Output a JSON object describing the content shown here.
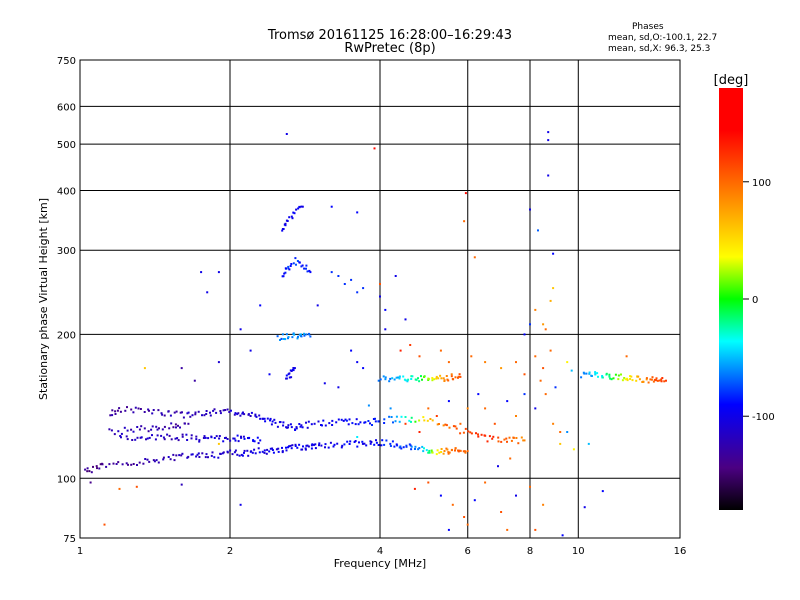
{
  "chart_data": {
    "type": "scatter",
    "title": "Tromsø 20161125 16:28:00–16:29:43",
    "subtitle": "RwPretec (8p)",
    "xlabel": "Frequency [MHz]",
    "ylabel": "Stationary phase Virtual Height [km]",
    "x_scale": "log",
    "y_scale": "log",
    "xlim": [
      1,
      16
    ],
    "ylim": [
      75,
      750
    ],
    "x_ticks": [
      1,
      2,
      4,
      6,
      8,
      10,
      16
    ],
    "y_ticks": [
      75,
      100,
      200,
      300,
      400,
      500,
      600,
      750
    ],
    "grid": true,
    "legend": {
      "heading": "Phases",
      "line_o": "mean, sd,O:-100.1, 22.7",
      "line_x": "mean, sd,X:  96.3, 25.3"
    },
    "colorbar": {
      "label": "[deg]",
      "ticks": [
        100,
        0,
        -100
      ],
      "range": [
        -180,
        180
      ],
      "colormap": "rainbow"
    },
    "traces": [
      {
        "x": [
          1.0,
          1.06,
          1.1,
          1.2,
          1.3,
          1.4,
          1.5,
          1.6,
          1.7,
          1.8,
          1.9,
          2.0,
          2.1,
          2.2,
          2.3,
          2.4,
          2.5,
          2.6,
          2.7,
          2.8,
          2.9,
          3.0,
          3.2,
          3.4,
          3.6,
          3.8,
          4.0,
          4.2,
          4.4,
          4.6,
          4.8,
          5.0,
          5.2,
          5.4,
          5.6,
          5.8,
          6.0
        ],
        "y": [
          104,
          104,
          106,
          108,
          108,
          109,
          110,
          111,
          112,
          112,
          112,
          113,
          113,
          113,
          114,
          114,
          115,
          115,
          116,
          116,
          117,
          117,
          117,
          118,
          118,
          119,
          119,
          118,
          117,
          116,
          115,
          114,
          114,
          114,
          114,
          114,
          114
        ],
        "phase": [
          -140,
          -140,
          -140,
          -130,
          -130,
          -125,
          -120,
          -120,
          -115,
          -115,
          -110,
          -110,
          -105,
          -105,
          -100,
          -100,
          -100,
          -100,
          -100,
          -100,
          -100,
          -100,
          -100,
          -95,
          -95,
          -95,
          -90,
          -85,
          -80,
          -75,
          -60,
          -20,
          40,
          90,
          100,
          100,
          100
        ]
      },
      {
        "x": [
          1.15,
          1.2,
          1.3,
          1.4,
          1.5,
          1.6,
          1.7,
          1.8,
          1.9,
          2.0,
          2.1,
          2.2,
          2.3,
          2.4,
          2.5,
          2.6,
          2.7,
          2.8,
          3.0,
          3.2,
          3.4,
          3.6,
          3.8,
          4.0,
          4.3,
          4.6,
          5.0,
          5.4,
          5.8,
          6.2,
          6.6,
          7.0,
          7.4,
          7.8
        ],
        "y": [
          137,
          139,
          139,
          138,
          137,
          136,
          136,
          137,
          138,
          138,
          137,
          136,
          135,
          132,
          130,
          128,
          128,
          129,
          130,
          131,
          131,
          131,
          131,
          132,
          133,
          133,
          132,
          129,
          126,
          123,
          121,
          120,
          120,
          120
        ],
        "phase": [
          -130,
          -130,
          -130,
          -125,
          -125,
          -120,
          -120,
          -120,
          -115,
          -115,
          -110,
          -110,
          -105,
          -100,
          -100,
          -100,
          -100,
          -100,
          -100,
          -95,
          -95,
          -95,
          -90,
          -90,
          -60,
          -20,
          60,
          100,
          110,
          120,
          130,
          110,
          100,
          90
        ]
      },
      {
        "x": [
          1.15,
          1.25,
          1.35,
          1.45,
          1.55,
          1.65
        ],
        "y": [
          125,
          126,
          127,
          128,
          129,
          130
        ],
        "phase": [
          -120,
          -120,
          -125,
          -125,
          -130,
          -130
        ]
      },
      {
        "x": [
          1.2,
          1.3,
          1.4,
          1.5,
          1.6,
          1.7,
          1.8,
          1.9,
          2.0,
          2.1,
          2.2,
          2.3
        ],
        "y": [
          122,
          122,
          122,
          122,
          122,
          121,
          121,
          121,
          121,
          121,
          120,
          120
        ],
        "phase": [
          -110,
          -115,
          -115,
          -120,
          -120,
          -115,
          -110,
          -110,
          -105,
          -100,
          -100,
          -95
        ]
      },
      {
        "x": [
          2.5,
          2.6,
          2.7,
          2.8,
          2.9
        ],
        "y": [
          197,
          198,
          199,
          200,
          198
        ],
        "phase": [
          -70,
          -60,
          -55,
          -60,
          -70
        ]
      },
      {
        "x": [
          2.55,
          2.6,
          2.7,
          2.8,
          2.9
        ],
        "y": [
          265,
          275,
          285,
          280,
          270
        ],
        "phase": [
          -90,
          -85,
          -80,
          -85,
          -90
        ]
      },
      {
        "x": [
          2.55,
          2.6,
          2.7,
          2.8
        ],
        "y": [
          330,
          345,
          360,
          370
        ],
        "phase": [
          -100,
          -100,
          -100,
          -100
        ]
      },
      {
        "x": [
          2.6,
          2.65,
          2.7
        ],
        "y": [
          160,
          165,
          170
        ],
        "phase": [
          -95,
          -100,
          -100
        ]
      },
      {
        "x": [
          4.0,
          4.2,
          4.4,
          4.6,
          4.8,
          5.0,
          5.2,
          5.4,
          5.6,
          5.8
        ],
        "y": [
          161,
          161,
          161,
          161,
          162,
          162,
          162,
          162,
          163,
          163
        ],
        "phase": [
          -70,
          -60,
          -50,
          -30,
          -10,
          20,
          60,
          90,
          100,
          110
        ]
      },
      {
        "x": [
          10.2,
          10.6,
          11.0,
          11.5,
          12.0,
          12.5,
          13.0,
          13.5,
          14.0,
          14.5,
          15.0
        ],
        "y": [
          165,
          165,
          165,
          164,
          163,
          162,
          162,
          161,
          161,
          161,
          160
        ],
        "phase": [
          -60,
          -50,
          -40,
          -20,
          10,
          40,
          60,
          80,
          100,
          110,
          120
        ]
      }
    ],
    "points": [
      {
        "x": 2.6,
        "y": 525,
        "phase": -100
      },
      {
        "x": 8.7,
        "y": 530,
        "phase": -100
      },
      {
        "x": 8.7,
        "y": 510,
        "phase": -100
      },
      {
        "x": 8.7,
        "y": 430,
        "phase": -100
      },
      {
        "x": 3.9,
        "y": 490,
        "phase": 140
      },
      {
        "x": 5.95,
        "y": 395,
        "phase": 140
      },
      {
        "x": 8.0,
        "y": 365,
        "phase": -100
      },
      {
        "x": 8.3,
        "y": 330,
        "phase": -70
      },
      {
        "x": 8.9,
        "y": 295,
        "phase": -90
      },
      {
        "x": 6.2,
        "y": 290,
        "phase": 100
      },
      {
        "x": 3.2,
        "y": 370,
        "phase": -90
      },
      {
        "x": 3.6,
        "y": 360,
        "phase": -90
      },
      {
        "x": 3.4,
        "y": 255,
        "phase": -80
      },
      {
        "x": 3.5,
        "y": 260,
        "phase": -80
      },
      {
        "x": 3.6,
        "y": 245,
        "phase": -80
      },
      {
        "x": 3.7,
        "y": 250,
        "phase": -80
      },
      {
        "x": 3.2,
        "y": 270,
        "phase": -80
      },
      {
        "x": 3.3,
        "y": 265,
        "phase": -80
      },
      {
        "x": 1.9,
        "y": 270,
        "phase": -100
      },
      {
        "x": 1.75,
        "y": 270,
        "phase": -100
      },
      {
        "x": 1.8,
        "y": 245,
        "phase": -100
      },
      {
        "x": 4.0,
        "y": 240,
        "phase": -100
      },
      {
        "x": 4.5,
        "y": 215,
        "phase": -100
      },
      {
        "x": 8.0,
        "y": 210,
        "phase": -80
      },
      {
        "x": 8.2,
        "y": 225,
        "phase": 90
      },
      {
        "x": 8.5,
        "y": 210,
        "phase": 80
      },
      {
        "x": 8.8,
        "y": 235,
        "phase": 70
      },
      {
        "x": 8.9,
        "y": 250,
        "phase": 60
      },
      {
        "x": 5.3,
        "y": 185,
        "phase": 100
      },
      {
        "x": 5.5,
        "y": 175,
        "phase": 100
      },
      {
        "x": 6.1,
        "y": 180,
        "phase": 100
      },
      {
        "x": 6.5,
        "y": 175,
        "phase": 90
      },
      {
        "x": 7.0,
        "y": 170,
        "phase": 80
      },
      {
        "x": 7.5,
        "y": 175,
        "phase": 100
      },
      {
        "x": 7.8,
        "y": 165,
        "phase": 110
      },
      {
        "x": 8.2,
        "y": 180,
        "phase": 100
      },
      {
        "x": 8.5,
        "y": 170,
        "phase": 110
      },
      {
        "x": 8.8,
        "y": 185,
        "phase": 100
      },
      {
        "x": 4.4,
        "y": 185,
        "phase": 130
      },
      {
        "x": 4.6,
        "y": 190,
        "phase": 120
      },
      {
        "x": 4.8,
        "y": 180,
        "phase": 110
      },
      {
        "x": 3.3,
        "y": 155,
        "phase": -100
      },
      {
        "x": 3.1,
        "y": 158,
        "phase": -100
      },
      {
        "x": 3.5,
        "y": 185,
        "phase": -90
      },
      {
        "x": 3.6,
        "y": 175,
        "phase": -95
      },
      {
        "x": 3.7,
        "y": 170,
        "phase": -90
      },
      {
        "x": 2.4,
        "y": 165,
        "phase": -95
      },
      {
        "x": 1.7,
        "y": 160,
        "phase": -130
      },
      {
        "x": 1.6,
        "y": 170,
        "phase": -130
      },
      {
        "x": 1.35,
        "y": 170,
        "phase": 60
      },
      {
        "x": 1.9,
        "y": 175,
        "phase": -110
      },
      {
        "x": 4.2,
        "y": 140,
        "phase": -60
      },
      {
        "x": 4.5,
        "y": 130,
        "phase": 120
      },
      {
        "x": 4.8,
        "y": 125,
        "phase": 130
      },
      {
        "x": 5.0,
        "y": 140,
        "phase": 100
      },
      {
        "x": 5.2,
        "y": 135,
        "phase": 120
      },
      {
        "x": 5.5,
        "y": 145,
        "phase": -90
      },
      {
        "x": 5.8,
        "y": 130,
        "phase": 100
      },
      {
        "x": 6.0,
        "y": 140,
        "phase": 90
      },
      {
        "x": 6.3,
        "y": 150,
        "phase": -90
      },
      {
        "x": 6.5,
        "y": 140,
        "phase": 100
      },
      {
        "x": 6.8,
        "y": 130,
        "phase": 110
      },
      {
        "x": 7.2,
        "y": 145,
        "phase": -90
      },
      {
        "x": 7.5,
        "y": 135,
        "phase": 90
      },
      {
        "x": 7.8,
        "y": 150,
        "phase": -80
      },
      {
        "x": 8.2,
        "y": 140,
        "phase": -100
      },
      {
        "x": 8.6,
        "y": 150,
        "phase": 100
      },
      {
        "x": 8.9,
        "y": 130,
        "phase": 90
      },
      {
        "x": 9.2,
        "y": 125,
        "phase": 100
      },
      {
        "x": 4.7,
        "y": 95,
        "phase": 130
      },
      {
        "x": 5.0,
        "y": 98,
        "phase": 110
      },
      {
        "x": 5.3,
        "y": 92,
        "phase": -90
      },
      {
        "x": 5.6,
        "y": 88,
        "phase": 100
      },
      {
        "x": 5.9,
        "y": 83,
        "phase": 110
      },
      {
        "x": 6.2,
        "y": 90,
        "phase": -90
      },
      {
        "x": 6.5,
        "y": 98,
        "phase": 100
      },
      {
        "x": 7.0,
        "y": 85,
        "phase": 110
      },
      {
        "x": 7.5,
        "y": 92,
        "phase": -100
      },
      {
        "x": 8.0,
        "y": 96,
        "phase": 100
      },
      {
        "x": 8.5,
        "y": 88,
        "phase": 90
      },
      {
        "x": 5.5,
        "y": 78,
        "phase": -90
      },
      {
        "x": 6.0,
        "y": 80,
        "phase": 100
      },
      {
        "x": 8.2,
        "y": 78,
        "phase": 110
      },
      {
        "x": 9.3,
        "y": 76,
        "phase": -90
      },
      {
        "x": 7.2,
        "y": 78,
        "phase": 100
      },
      {
        "x": 10.3,
        "y": 87,
        "phase": -100
      },
      {
        "x": 11.2,
        "y": 94,
        "phase": -90
      },
      {
        "x": 2.1,
        "y": 88,
        "phase": -100
      },
      {
        "x": 1.2,
        "y": 95,
        "phase": 100
      },
      {
        "x": 1.3,
        "y": 96,
        "phase": 110
      },
      {
        "x": 1.12,
        "y": 80,
        "phase": 110
      },
      {
        "x": 1.6,
        "y": 97,
        "phase": -120
      },
      {
        "x": 1.05,
        "y": 98,
        "phase": -140
      },
      {
        "x": 9.2,
        "y": 118,
        "phase": 60
      },
      {
        "x": 9.8,
        "y": 115,
        "phase": 40
      },
      {
        "x": 9.5,
        "y": 125,
        "phase": -60
      },
      {
        "x": 10.5,
        "y": 118,
        "phase": -50
      },
      {
        "x": 9.5,
        "y": 175,
        "phase": 40
      },
      {
        "x": 9.7,
        "y": 168,
        "phase": -50
      },
      {
        "x": 12.5,
        "y": 180,
        "phase": 100
      },
      {
        "x": 4.1,
        "y": 205,
        "phase": -100
      },
      {
        "x": 4.1,
        "y": 225,
        "phase": -90
      },
      {
        "x": 3.0,
        "y": 230,
        "phase": -100
      },
      {
        "x": 2.3,
        "y": 230,
        "phase": -90
      },
      {
        "x": 2.1,
        "y": 205,
        "phase": -100
      },
      {
        "x": 2.2,
        "y": 185,
        "phase": -100
      },
      {
        "x": 4.0,
        "y": 255,
        "phase": 110
      },
      {
        "x": 4.3,
        "y": 265,
        "phase": -100
      },
      {
        "x": 5.9,
        "y": 345,
        "phase": 100
      },
      {
        "x": 7.8,
        "y": 200,
        "phase": -90
      },
      {
        "x": 8.6,
        "y": 205,
        "phase": 100
      },
      {
        "x": 9.0,
        "y": 155,
        "phase": -80
      },
      {
        "x": 8.4,
        "y": 160,
        "phase": 100
      },
      {
        "x": 1.9,
        "y": 118,
        "phase": 60
      },
      {
        "x": 3.6,
        "y": 122,
        "phase": -40
      },
      {
        "x": 3.8,
        "y": 142,
        "phase": -60
      },
      {
        "x": 6.9,
        "y": 106,
        "phase": -100
      },
      {
        "x": 7.3,
        "y": 110,
        "phase": 100
      }
    ]
  }
}
